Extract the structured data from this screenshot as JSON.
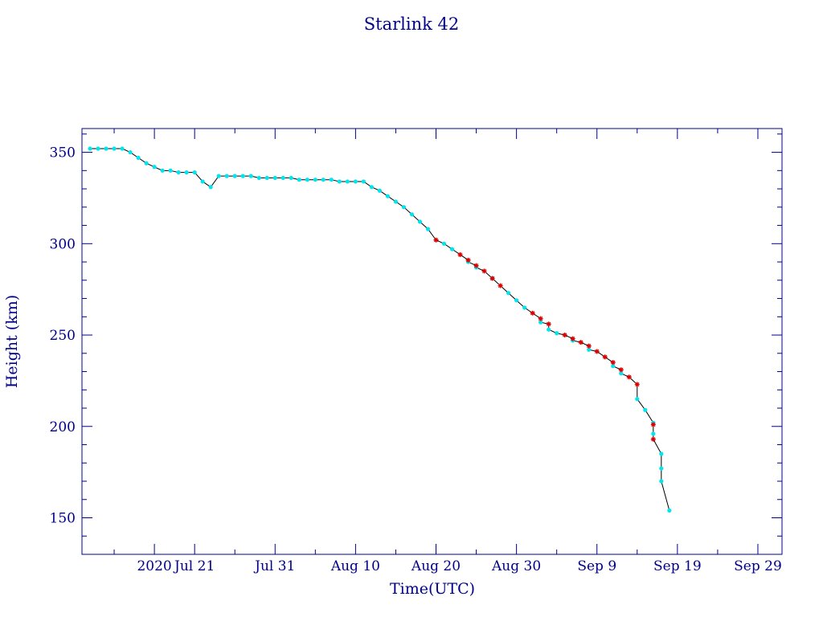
{
  "chart_data": {
    "type": "line",
    "title": "Starlink 42",
    "xlabel": "Time(UTC)",
    "ylabel": "Height (km)",
    "xlim": [
      "2020-07-07",
      "2020-10-02"
    ],
    "ylim": [
      130,
      363
    ],
    "x_ticks": [
      {
        "date": "2020-07-16",
        "label": "2020"
      },
      {
        "date": "2020-07-21",
        "label": "Jul 21"
      },
      {
        "date": "2020-07-31",
        "label": "Jul 31"
      },
      {
        "date": "2020-08-10",
        "label": "Aug 10"
      },
      {
        "date": "2020-08-20",
        "label": "Aug 20"
      },
      {
        "date": "2020-08-30",
        "label": "Aug 30"
      },
      {
        "date": "2020-09-09",
        "label": "Sep  9"
      },
      {
        "date": "2020-09-19",
        "label": "Sep 19"
      },
      {
        "date": "2020-09-29",
        "label": "Sep 29"
      }
    ],
    "y_ticks": [
      150,
      200,
      250,
      300,
      350
    ],
    "grid": false,
    "series": [
      {
        "marker": "dot",
        "color": "#00e5ee",
        "points": [
          [
            "2020-07-08",
            352
          ],
          [
            "2020-07-09",
            352
          ],
          [
            "2020-07-10",
            352
          ],
          [
            "2020-07-11",
            352
          ],
          [
            "2020-07-12",
            352
          ],
          [
            "2020-07-13",
            350
          ],
          [
            "2020-07-14",
            347
          ],
          [
            "2020-07-15",
            344
          ],
          [
            "2020-07-16",
            342
          ],
          [
            "2020-07-17",
            340
          ],
          [
            "2020-07-18",
            340
          ],
          [
            "2020-07-19",
            339
          ],
          [
            "2020-07-20",
            339
          ],
          [
            "2020-07-21",
            339
          ],
          [
            "2020-07-22",
            334
          ],
          [
            "2020-07-23",
            331
          ],
          [
            "2020-07-24",
            337
          ],
          [
            "2020-07-25",
            337
          ],
          [
            "2020-07-26",
            337
          ],
          [
            "2020-07-27",
            337
          ],
          [
            "2020-07-28",
            337
          ],
          [
            "2020-07-29",
            336
          ],
          [
            "2020-07-30",
            336
          ],
          [
            "2020-07-31",
            336
          ],
          [
            "2020-08-01",
            336
          ],
          [
            "2020-08-02",
            336
          ],
          [
            "2020-08-03",
            335
          ],
          [
            "2020-08-04",
            335
          ],
          [
            "2020-08-05",
            335
          ],
          [
            "2020-08-06",
            335
          ],
          [
            "2020-08-07",
            335
          ],
          [
            "2020-08-08",
            334
          ],
          [
            "2020-08-09",
            334
          ],
          [
            "2020-08-10",
            334
          ],
          [
            "2020-08-11",
            334
          ],
          [
            "2020-08-12",
            331
          ],
          [
            "2020-08-13",
            329
          ],
          [
            "2020-08-14",
            326
          ],
          [
            "2020-08-15",
            323
          ],
          [
            "2020-08-16",
            320
          ],
          [
            "2020-08-17",
            316
          ],
          [
            "2020-08-18",
            312
          ],
          [
            "2020-08-19",
            308
          ],
          [
            "2020-08-21",
            300
          ],
          [
            "2020-08-22",
            297
          ],
          [
            "2020-08-24",
            290
          ],
          [
            "2020-08-25",
            287
          ],
          [
            "2020-08-27",
            281
          ],
          [
            "2020-08-29",
            273
          ],
          [
            "2020-08-30",
            269
          ],
          [
            "2020-08-31",
            265
          ],
          [
            "2020-09-02",
            257
          ],
          [
            "2020-09-03",
            253
          ],
          [
            "2020-09-04",
            251
          ],
          [
            "2020-09-06",
            247
          ],
          [
            "2020-09-08",
            242
          ],
          [
            "2020-09-11",
            233
          ],
          [
            "2020-09-12",
            229
          ],
          [
            "2020-09-14",
            215
          ],
          [
            "2020-09-15",
            209
          ],
          [
            "2020-09-16",
            202
          ],
          [
            "2020-09-16",
            196
          ],
          [
            "2020-09-17",
            185
          ],
          [
            "2020-09-17",
            177
          ],
          [
            "2020-09-17",
            170
          ],
          [
            "2020-09-18",
            154
          ]
        ]
      },
      {
        "marker": "star",
        "color": "#dd0000",
        "points": [
          [
            "2020-08-20",
            302
          ],
          [
            "2020-08-23",
            294
          ],
          [
            "2020-08-24",
            291
          ],
          [
            "2020-08-25",
            288
          ],
          [
            "2020-08-26",
            285
          ],
          [
            "2020-08-27",
            281
          ],
          [
            "2020-08-28",
            277
          ],
          [
            "2020-09-01",
            262
          ],
          [
            "2020-09-02",
            259
          ],
          [
            "2020-09-03",
            256
          ],
          [
            "2020-09-05",
            250
          ],
          [
            "2020-09-06",
            248
          ],
          [
            "2020-09-07",
            246
          ],
          [
            "2020-09-08",
            244
          ],
          [
            "2020-09-09",
            241
          ],
          [
            "2020-09-10",
            238
          ],
          [
            "2020-09-11",
            235
          ],
          [
            "2020-09-12",
            231
          ],
          [
            "2020-09-13",
            227
          ],
          [
            "2020-09-14",
            223
          ],
          [
            "2020-09-16",
            201
          ],
          [
            "2020-09-16",
            193
          ]
        ]
      }
    ]
  }
}
